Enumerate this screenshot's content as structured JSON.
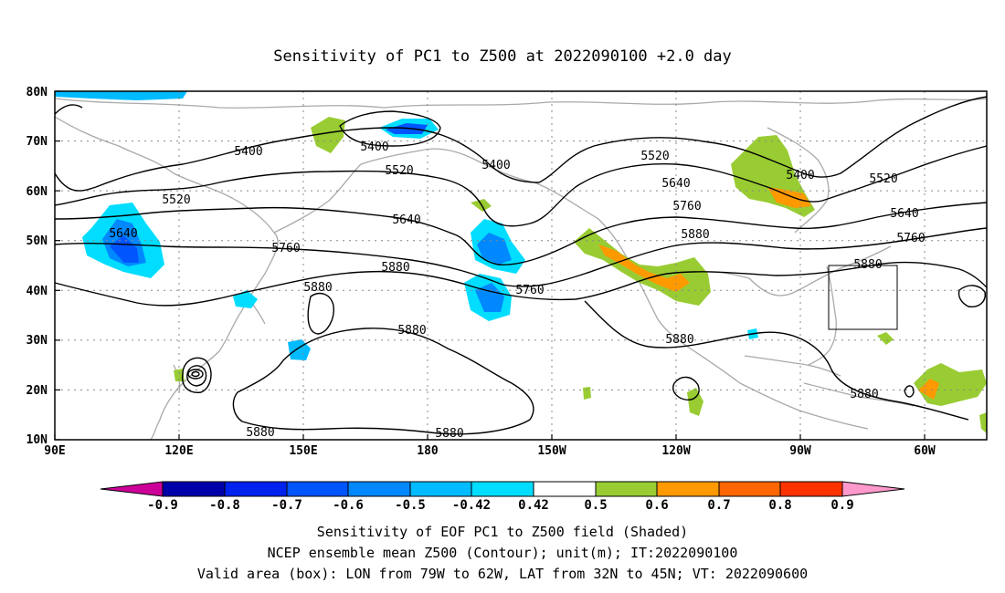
{
  "title": "Sensitivity of PC1 to Z500 at 2022090100 +2.0 day",
  "lat_ticks": [
    "80N",
    "70N",
    "60N",
    "50N",
    "40N",
    "30N",
    "20N",
    "10N"
  ],
  "lon_ticks": [
    "90E",
    "120E",
    "150E",
    "180",
    "150W",
    "120W",
    "90W",
    "60W"
  ],
  "contour_labels": [
    "5400",
    "5400",
    "5400",
    "5400",
    "5520",
    "5520",
    "5520",
    "5520",
    "5640",
    "5640",
    "5640",
    "5640",
    "5760",
    "5760",
    "5760",
    "5760",
    "5880",
    "5880",
    "5880",
    "5880",
    "5880",
    "5880",
    "5880",
    "5880",
    "5880"
  ],
  "colorbar": {
    "labels": [
      "-0.9",
      "-0.8",
      "-0.7",
      "-0.6",
      "-0.5",
      "-0.42",
      "0.42",
      "0.5",
      "0.6",
      "0.7",
      "0.8",
      "0.9"
    ],
    "colors": [
      "#cc0099",
      "#0000aa",
      "#0022ee",
      "#0055ff",
      "#0088ff",
      "#00bbff",
      "#00ddff",
      "#ffffff",
      "#99cc33",
      "#ff9900",
      "#ff6600",
      "#ff3300",
      "#ff0000",
      "#ff99cc"
    ]
  },
  "caption": [
    "Sensitivity of EOF PC1 to Z500 field (Shaded)",
    "NCEP ensemble mean Z500 (Contour); unit(m); IT:2022090100",
    "Valid area (box): LON from 79W to 62W, LAT from 32N to 45N; VT: 2022090600"
  ]
}
